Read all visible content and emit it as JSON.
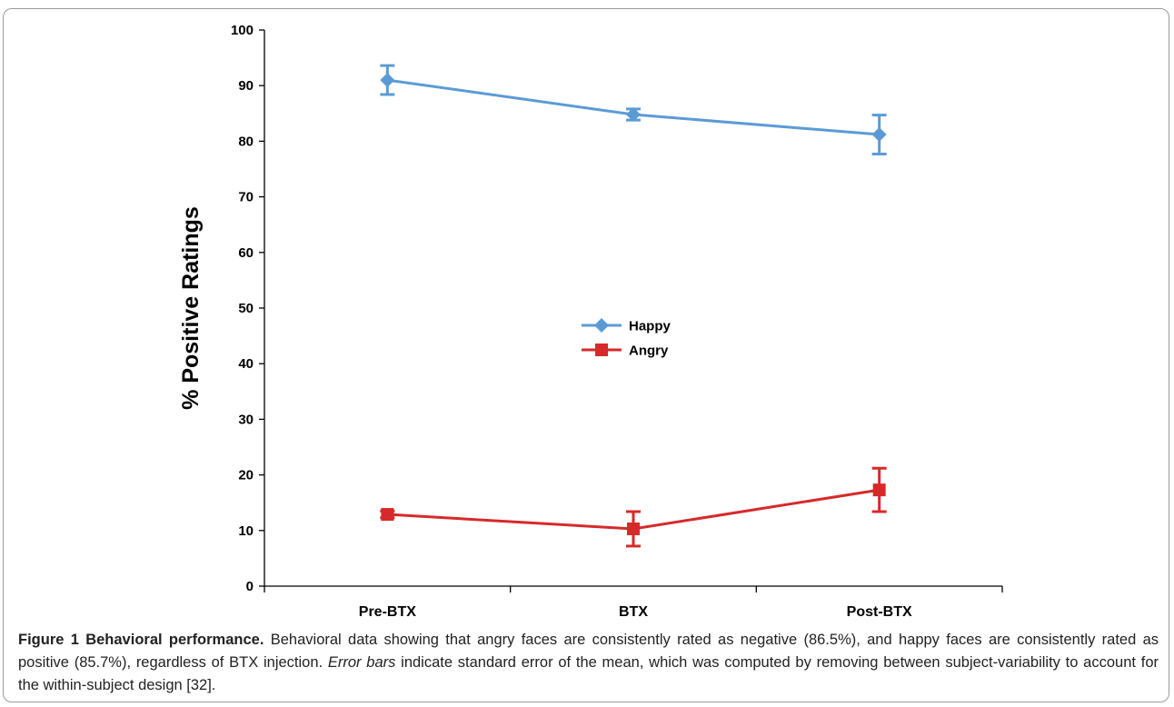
{
  "chart_data": {
    "type": "line",
    "ylabel": "% Positive Ratings",
    "xlabel": "",
    "categories": [
      "Pre-BTX",
      "BTX",
      "Post-BTX"
    ],
    "ylim": [
      0,
      100
    ],
    "yticks": [
      0,
      10,
      20,
      30,
      40,
      50,
      60,
      70,
      80,
      90,
      100
    ],
    "grid": false,
    "legend": "center",
    "series": [
      {
        "name": "Happy",
        "values": [
          91.0,
          84.8,
          81.2
        ],
        "error": [
          2.6,
          1.0,
          3.5
        ],
        "color": "#5b9bd5",
        "marker": "diamond"
      },
      {
        "name": "Angry",
        "values": [
          12.9,
          10.3,
          17.3
        ],
        "error": [
          0.6,
          3.1,
          3.9
        ],
        "color": "#d62a2a",
        "marker": "square"
      }
    ]
  },
  "caption": {
    "title": "Figure 1 Behavioral performance.",
    "text_before_em": " Behavioral data showing that angry faces are consistently rated as negative (86.5%), and happy faces are consistently rated as positive (85.7%), regardless of BTX injection. ",
    "em": "Error bars",
    "text_after_em": " indicate standard error of the mean, which was computed by removing between subject-variability to account for the within-subject design [32]."
  }
}
